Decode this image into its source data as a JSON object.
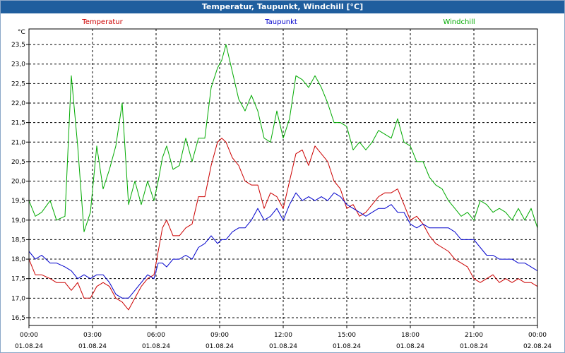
{
  "window": {
    "title": "Temperatur, Taupunkt, Windchill [°C]"
  },
  "chart_data": {
    "type": "line",
    "title": "Temperatur, Taupunkt, Windchill [°C]",
    "ylabel": "°C",
    "ylim": [
      16.3,
      23.9
    ],
    "xlim": [
      0,
      24
    ],
    "grid": true,
    "legend_position": "top",
    "y_ticks": [
      "16,5",
      "17,0",
      "17,5",
      "18,0",
      "18,5",
      "19,0",
      "19,5",
      "20,0",
      "20,5",
      "21,0",
      "21,5",
      "22,0",
      "22,5",
      "23,0",
      "23,5"
    ],
    "y_tick_values": [
      16.5,
      17.0,
      17.5,
      18.0,
      18.5,
      19.0,
      19.5,
      20.0,
      20.5,
      21.0,
      21.5,
      22.0,
      22.5,
      23.0,
      23.5
    ],
    "x_ticks": [
      {
        "time": "00:00",
        "date": "01.08.24",
        "hour": 0
      },
      {
        "time": "03:00",
        "date": "01.08.24",
        "hour": 3
      },
      {
        "time": "06:00",
        "date": "01.08.24",
        "hour": 6
      },
      {
        "time": "09:00",
        "date": "01.08.24",
        "hour": 9
      },
      {
        "time": "12:00",
        "date": "01.08.24",
        "hour": 12
      },
      {
        "time": "15:00",
        "date": "01.08.24",
        "hour": 15
      },
      {
        "time": "18:00",
        "date": "01.08.24",
        "hour": 18
      },
      {
        "time": "21:00",
        "date": "01.08.24",
        "hour": 21
      },
      {
        "time": "00:00",
        "date": "02.08.24",
        "hour": 24
      }
    ],
    "series": [
      {
        "name": "Temperatur",
        "color": "#cc0000",
        "x": [
          0,
          0.3,
          0.6,
          1.0,
          1.3,
          1.7,
          2.0,
          2.3,
          2.6,
          2.9,
          3.2,
          3.5,
          3.8,
          4.1,
          4.4,
          4.7,
          5.0,
          5.3,
          5.6,
          5.9,
          6.1,
          6.3,
          6.5,
          6.8,
          7.1,
          7.4,
          7.7,
          8.0,
          8.3,
          8.6,
          8.9,
          9.1,
          9.3,
          9.6,
          9.9,
          10.2,
          10.5,
          10.8,
          11.1,
          11.4,
          11.7,
          12.0,
          12.3,
          12.6,
          12.9,
          13.2,
          13.5,
          13.8,
          14.1,
          14.4,
          14.7,
          15.0,
          15.3,
          15.6,
          15.9,
          16.2,
          16.5,
          16.8,
          17.1,
          17.4,
          17.7,
          18.0,
          18.3,
          18.6,
          18.9,
          19.2,
          19.5,
          19.8,
          20.1,
          20.4,
          20.7,
          21.0,
          21.3,
          21.6,
          21.9,
          22.2,
          22.5,
          22.8,
          23.1,
          23.4,
          23.7,
          24.0
        ],
        "values": [
          18.0,
          17.6,
          17.6,
          17.5,
          17.4,
          17.4,
          17.2,
          17.4,
          17.0,
          17.0,
          17.3,
          17.4,
          17.3,
          17.0,
          16.9,
          16.7,
          17.0,
          17.3,
          17.5,
          17.6,
          18.2,
          18.8,
          19.0,
          18.6,
          18.6,
          18.8,
          18.9,
          19.6,
          19.6,
          20.4,
          21.0,
          21.1,
          21.0,
          20.6,
          20.4,
          20.0,
          19.9,
          19.9,
          19.3,
          19.7,
          19.6,
          19.3,
          20.0,
          20.7,
          20.8,
          20.4,
          20.9,
          20.7,
          20.5,
          20.0,
          19.8,
          19.3,
          19.4,
          19.1,
          19.2,
          19.4,
          19.6,
          19.7,
          19.7,
          19.8,
          19.4,
          19.0,
          19.1,
          18.9,
          18.6,
          18.4,
          18.3,
          18.2,
          18.0,
          17.9,
          17.8,
          17.5,
          17.4,
          17.5,
          17.6,
          17.4,
          17.5,
          17.4,
          17.5,
          17.4,
          17.4,
          17.3
        ]
      },
      {
        "name": "Taupunkt",
        "color": "#0000cc",
        "x": [
          0,
          0.3,
          0.6,
          1.0,
          1.3,
          1.7,
          2.0,
          2.3,
          2.6,
          2.9,
          3.2,
          3.5,
          3.8,
          4.1,
          4.4,
          4.7,
          5.0,
          5.3,
          5.6,
          5.9,
          6.1,
          6.3,
          6.5,
          6.8,
          7.1,
          7.4,
          7.7,
          8.0,
          8.3,
          8.6,
          8.9,
          9.1,
          9.3,
          9.6,
          9.9,
          10.2,
          10.5,
          10.8,
          11.1,
          11.4,
          11.7,
          12.0,
          12.3,
          12.6,
          12.9,
          13.2,
          13.5,
          13.8,
          14.1,
          14.4,
          14.7,
          15.0,
          15.3,
          15.6,
          15.9,
          16.2,
          16.5,
          16.8,
          17.1,
          17.4,
          17.7,
          18.0,
          18.3,
          18.6,
          18.9,
          19.2,
          19.5,
          19.8,
          20.1,
          20.4,
          20.7,
          21.0,
          21.3,
          21.6,
          21.9,
          22.2,
          22.5,
          22.8,
          23.1,
          23.4,
          23.7,
          24.0
        ],
        "values": [
          18.2,
          18.0,
          18.1,
          17.9,
          17.9,
          17.8,
          17.7,
          17.5,
          17.6,
          17.5,
          17.6,
          17.6,
          17.4,
          17.1,
          17.0,
          17.0,
          17.2,
          17.4,
          17.6,
          17.5,
          17.9,
          17.9,
          17.8,
          18.0,
          18.0,
          18.1,
          18.0,
          18.3,
          18.4,
          18.6,
          18.4,
          18.5,
          18.5,
          18.7,
          18.8,
          18.8,
          19.0,
          19.3,
          19.0,
          19.1,
          19.3,
          19.0,
          19.4,
          19.7,
          19.5,
          19.6,
          19.5,
          19.6,
          19.5,
          19.7,
          19.6,
          19.4,
          19.3,
          19.2,
          19.1,
          19.2,
          19.3,
          19.3,
          19.4,
          19.2,
          19.2,
          18.9,
          18.8,
          18.9,
          18.8,
          18.8,
          18.8,
          18.8,
          18.7,
          18.5,
          18.5,
          18.5,
          18.3,
          18.1,
          18.1,
          18.0,
          18.0,
          18.0,
          17.9,
          17.9,
          17.8,
          17.7
        ]
      },
      {
        "name": "Windchill",
        "color": "#00aa00",
        "x": [
          0,
          0.3,
          0.6,
          1.0,
          1.3,
          1.7,
          2.0,
          2.3,
          2.6,
          2.9,
          3.2,
          3.5,
          3.8,
          4.1,
          4.4,
          4.7,
          5.0,
          5.3,
          5.6,
          5.9,
          6.1,
          6.3,
          6.5,
          6.8,
          7.1,
          7.4,
          7.7,
          8.0,
          8.3,
          8.6,
          8.9,
          9.1,
          9.3,
          9.6,
          9.9,
          10.2,
          10.5,
          10.8,
          11.1,
          11.4,
          11.7,
          12.0,
          12.3,
          12.6,
          12.9,
          13.2,
          13.5,
          13.8,
          14.1,
          14.4,
          14.7,
          15.0,
          15.3,
          15.6,
          15.9,
          16.2,
          16.5,
          16.8,
          17.1,
          17.4,
          17.7,
          18.0,
          18.3,
          18.6,
          18.9,
          19.2,
          19.5,
          19.8,
          20.1,
          20.4,
          20.7,
          21.0,
          21.3,
          21.6,
          21.9,
          22.2,
          22.5,
          22.8,
          23.1,
          23.4,
          23.7,
          24.0
        ],
        "values": [
          19.5,
          19.1,
          19.2,
          19.5,
          19.0,
          19.1,
          22.7,
          20.9,
          18.7,
          19.2,
          20.9,
          19.8,
          20.3,
          20.9,
          22.0,
          19.4,
          20.0,
          19.4,
          20.0,
          19.5,
          20.0,
          20.6,
          20.9,
          20.3,
          20.4,
          21.1,
          20.5,
          21.1,
          21.1,
          22.4,
          22.9,
          23.1,
          23.5,
          22.8,
          22.1,
          21.8,
          22.2,
          21.8,
          21.1,
          21.0,
          21.8,
          21.1,
          21.6,
          22.7,
          22.6,
          22.4,
          22.7,
          22.4,
          22.0,
          21.5,
          21.5,
          21.4,
          20.8,
          21.0,
          20.8,
          21.0,
          21.3,
          21.2,
          21.1,
          21.6,
          21.0,
          20.9,
          20.5,
          20.5,
          20.1,
          19.9,
          19.8,
          19.5,
          19.3,
          19.1,
          19.2,
          19.0,
          19.5,
          19.4,
          19.2,
          19.3,
          19.2,
          19.0,
          19.3,
          19.0,
          19.3,
          18.8
        ]
      }
    ]
  }
}
